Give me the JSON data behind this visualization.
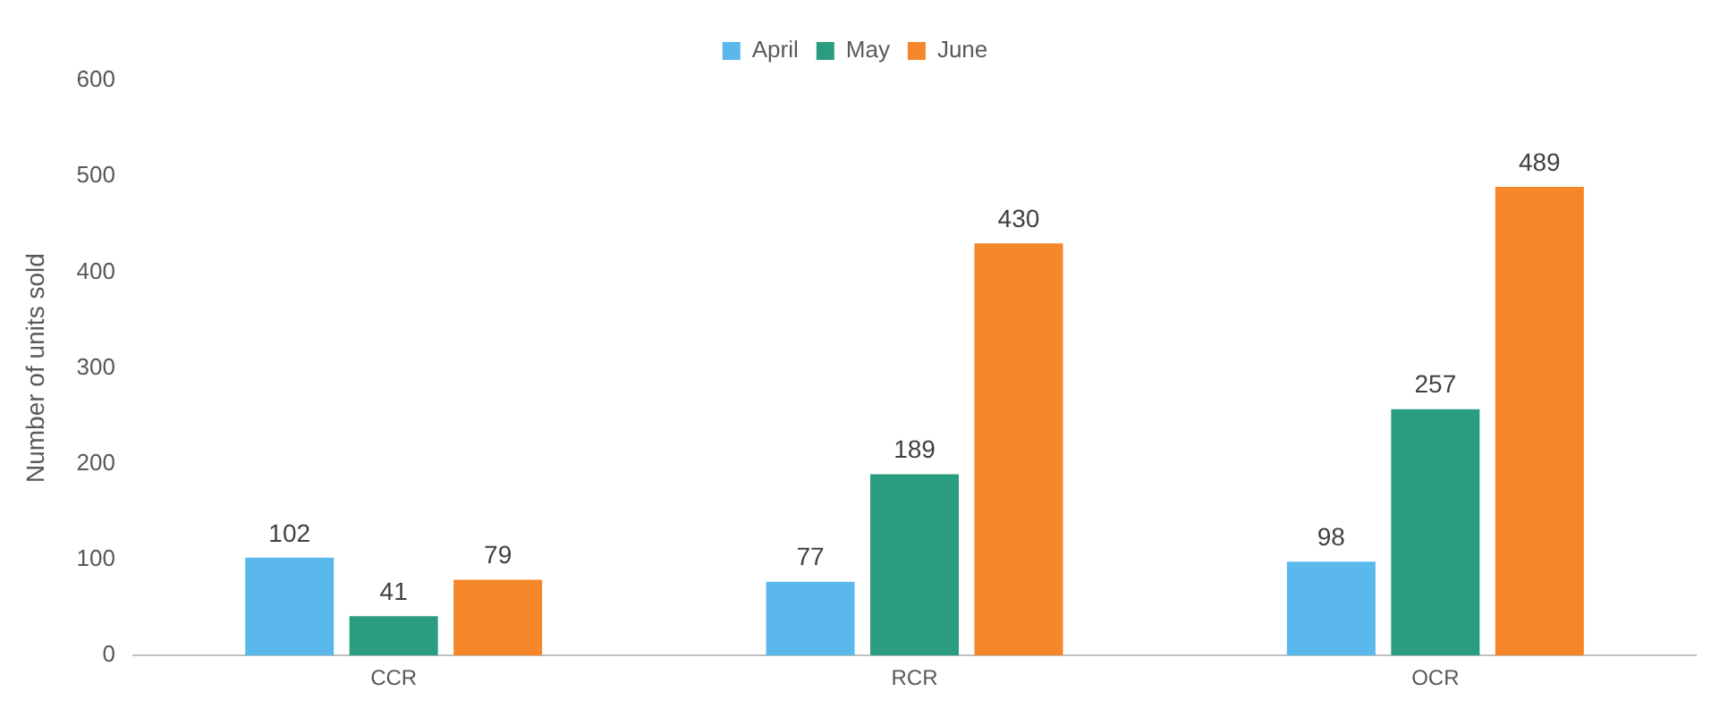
{
  "chart_data": {
    "type": "bar",
    "ylabel": "Number of units sold",
    "categories": [
      "CCR",
      "RCR",
      "OCR"
    ],
    "series": [
      {
        "name": "April",
        "color": "#5bb8ec",
        "values": [
          102,
          77,
          98
        ]
      },
      {
        "name": "May",
        "color": "#2a9d80",
        "values": [
          41,
          189,
          257
        ]
      },
      {
        "name": "June",
        "color": "#f5862a",
        "values": [
          79,
          430,
          489
        ]
      }
    ],
    "ylim": [
      0,
      600
    ],
    "yticks": [
      0,
      100,
      200,
      300,
      400,
      500,
      600
    ],
    "grid": false,
    "legend": "top",
    "data_labels": true
  }
}
